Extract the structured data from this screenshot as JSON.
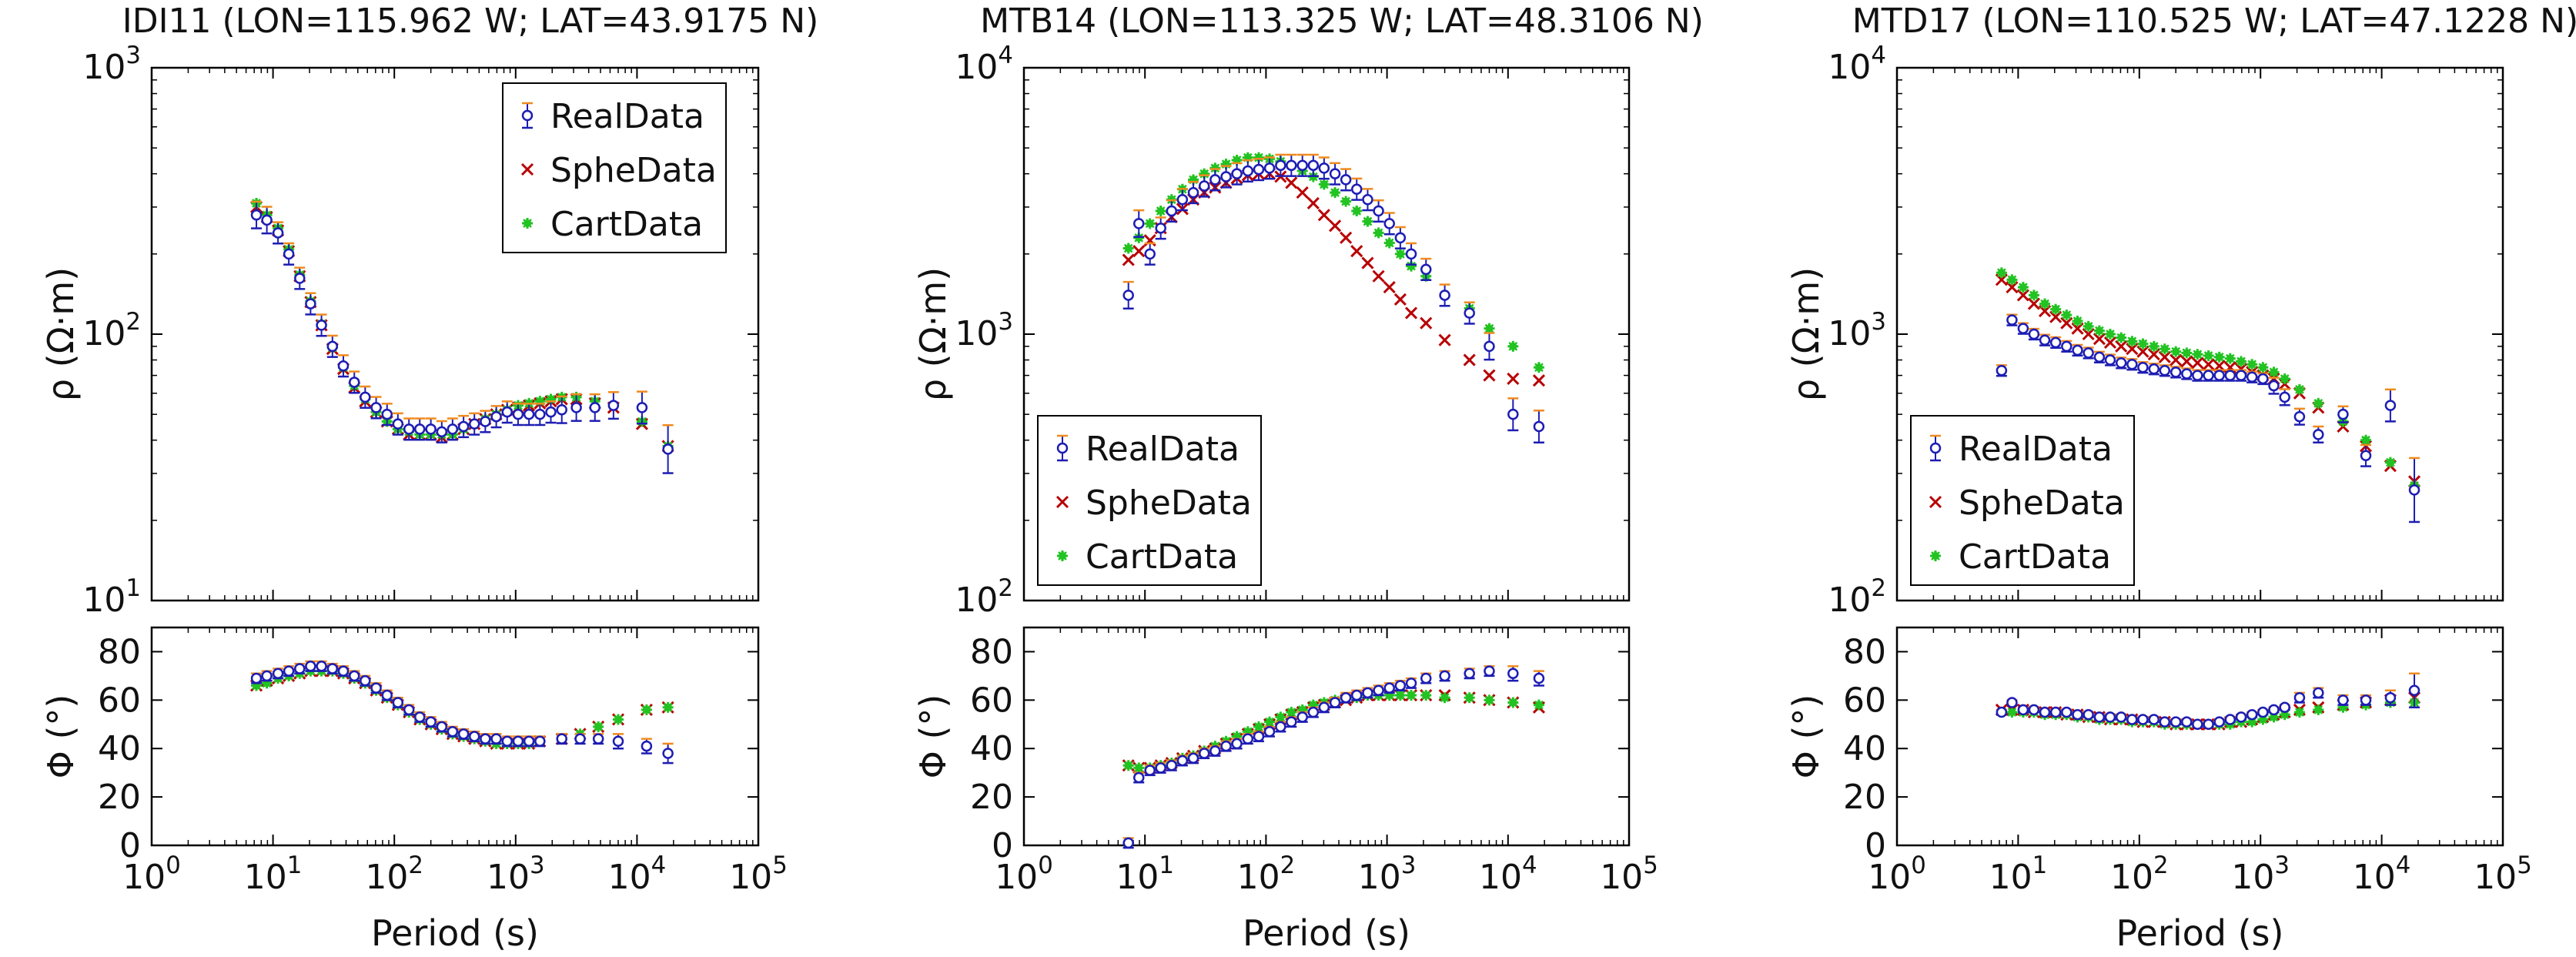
{
  "figure": {
    "colors": {
      "RealData": "#1d1db3",
      "SpheData": "#b80000",
      "CartData": "#22c322",
      "errorbar": "#f08a1e"
    }
  },
  "chart_data": [
    {
      "type": "scatter",
      "station": "IDI11",
      "title": "IDI11 (LON=115.962 W; LAT=43.9175 N)",
      "xlabel": "Period (s)",
      "xscale": "log",
      "xlim": [
        1,
        100000
      ],
      "xticks": [
        "10^0",
        "10^1",
        "10^2",
        "10^3",
        "10^4",
        "10^5"
      ],
      "legend_position": "top-right",
      "legend": [
        "RealData",
        "SpheData",
        "CartData"
      ],
      "rho": {
        "ylabel": "ρ (Ω·m)",
        "yscale": "log",
        "ylim": [
          10,
          1000
        ],
        "yticks": [
          "10^1",
          "10^2",
          "10^3"
        ],
        "period": [
          7.3,
          8.9,
          11.0,
          13.5,
          16.6,
          20.4,
          25.1,
          30.9,
          38.0,
          46.8,
          57.5,
          70.8,
          87.1,
          107,
          132,
          162,
          200,
          246,
          302,
          372,
          457,
          562,
          692,
          851,
          1047,
          1288,
          1585,
          1950,
          2400,
          3162,
          4500,
          6400,
          11000,
          18000
        ],
        "RealData": [
          280,
          268,
          240,
          200,
          162,
          130,
          108,
          90,
          76,
          66,
          58,
          53,
          50,
          46,
          44,
          44,
          44,
          43,
          44,
          45,
          46,
          47,
          49,
          51,
          50,
          50,
          50,
          51,
          52,
          53,
          53,
          54,
          53,
          37
        ],
        "RealData_err": [
          0.05,
          0.05,
          0.04,
          0.04,
          0.04,
          0.04,
          0.04,
          0.04,
          0.04,
          0.04,
          0.04,
          0.04,
          0.04,
          0.04,
          0.04,
          0.04,
          0.04,
          0.04,
          0.04,
          0.04,
          0.04,
          0.04,
          0.04,
          0.04,
          0.04,
          0.04,
          0.04,
          0.04,
          0.05,
          0.05,
          0.05,
          0.05,
          0.06,
          0.09
        ],
        "SpheData": [
          300,
          275,
          245,
          205,
          165,
          132,
          108,
          88,
          74,
          63,
          56,
          51,
          47,
          44,
          42,
          42,
          42,
          41,
          42,
          44,
          46,
          48,
          50,
          52,
          53,
          54,
          55,
          56,
          57,
          57,
          55,
          53,
          46,
          38
        ],
        "CartData": [
          310,
          280,
          250,
          208,
          167,
          133,
          109,
          89,
          75,
          64,
          57,
          51,
          47,
          44,
          43,
          42,
          42,
          42,
          42,
          44,
          46,
          48,
          50,
          52,
          54,
          55,
          56,
          57,
          58,
          58,
          56,
          54,
          47,
          38
        ]
      },
      "phase": {
        "ylabel": "Φ (°)",
        "ylim": [
          0,
          90
        ],
        "yticks": [
          0,
          20,
          40,
          60,
          80
        ],
        "period": [
          7.3,
          8.9,
          11.0,
          13.5,
          16.6,
          20.4,
          25.1,
          30.9,
          38.0,
          46.8,
          57.5,
          70.8,
          87.1,
          107,
          132,
          162,
          200,
          246,
          302,
          372,
          457,
          562,
          692,
          851,
          1047,
          1288,
          1585,
          2400,
          3400,
          4800,
          7000,
          12000,
          18000
        ],
        "RealData": [
          69,
          70,
          71,
          72,
          73,
          74,
          74,
          73,
          72,
          70,
          68,
          65,
          62,
          59,
          56,
          53,
          51,
          49,
          47,
          46,
          45,
          44,
          44,
          43,
          43,
          43,
          43,
          44,
          44,
          44,
          43,
          41,
          38
        ],
        "RealData_err": [
          2,
          2,
          2,
          2,
          2,
          2,
          2,
          2,
          2,
          2,
          2,
          2,
          2,
          2,
          2,
          2,
          2,
          2,
          2,
          2,
          2,
          2,
          2,
          2,
          2,
          2,
          2,
          2,
          2,
          2,
          3,
          3,
          4
        ],
        "SpheData": [
          66,
          68,
          69,
          70,
          71,
          72,
          72,
          72,
          71,
          69,
          67,
          64,
          61,
          58,
          55,
          52,
          50,
          48,
          46,
          45,
          44,
          43,
          42,
          42,
          42,
          42,
          43,
          44,
          46,
          49,
          52,
          56,
          57
        ],
        "CartData": [
          66,
          67,
          69,
          70,
          71,
          72,
          72,
          72,
          71,
          69,
          67,
          64,
          61,
          58,
          55,
          52,
          50,
          48,
          46,
          45,
          44,
          43,
          42,
          42,
          42,
          42,
          43,
          44,
          46,
          49,
          52,
          56,
          57
        ]
      }
    },
    {
      "type": "scatter",
      "station": "MTB14",
      "title": "MTB14 (LON=113.325 W; LAT=48.3106 N)",
      "xlabel": "Period (s)",
      "xscale": "log",
      "xlim": [
        1,
        100000
      ],
      "xticks": [
        "10^0",
        "10^1",
        "10^2",
        "10^3",
        "10^4",
        "10^5"
      ],
      "legend_position": "bottom-left",
      "legend": [
        "RealData",
        "SpheData",
        "CartData"
      ],
      "rho": {
        "ylabel": "ρ (Ω·m)",
        "yscale": "log",
        "ylim": [
          100,
          10000
        ],
        "yticks": [
          "10^2",
          "10^3",
          "10^4"
        ],
        "period": [
          7.3,
          8.9,
          11.0,
          13.5,
          16.6,
          20.4,
          25.1,
          30.9,
          38.0,
          46.8,
          57.5,
          70.8,
          87.1,
          107,
          132,
          162,
          200,
          246,
          302,
          372,
          457,
          562,
          692,
          851,
          1047,
          1288,
          1585,
          2100,
          3000,
          4800,
          7000,
          11000,
          18000
        ],
        "RealData": [
          1400,
          2600,
          2000,
          2500,
          2900,
          3200,
          3400,
          3600,
          3800,
          3900,
          4000,
          4100,
          4150,
          4200,
          4300,
          4300,
          4300,
          4300,
          4200,
          4000,
          3800,
          3500,
          3200,
          2900,
          2600,
          2300,
          2000,
          1750,
          1400,
          1200,
          900,
          500,
          450
        ],
        "RealData_err": [
          0.05,
          0.05,
          0.04,
          0.04,
          0.04,
          0.04,
          0.04,
          0.04,
          0.04,
          0.04,
          0.04,
          0.04,
          0.04,
          0.04,
          0.04,
          0.04,
          0.04,
          0.04,
          0.04,
          0.04,
          0.04,
          0.04,
          0.04,
          0.04,
          0.04,
          0.04,
          0.04,
          0.04,
          0.04,
          0.04,
          0.05,
          0.06,
          0.06
        ],
        "SpheData": [
          1900,
          2050,
          2250,
          2500,
          2750,
          2950,
          3200,
          3400,
          3550,
          3700,
          3850,
          3950,
          4000,
          4000,
          3900,
          3700,
          3400,
          3100,
          2800,
          2550,
          2300,
          2050,
          1850,
          1650,
          1500,
          1350,
          1200,
          1100,
          950,
          800,
          700,
          680,
          670
        ],
        "CartData": [
          2100,
          2300,
          2600,
          2900,
          3200,
          3500,
          3800,
          4000,
          4200,
          4350,
          4500,
          4600,
          4600,
          4550,
          4450,
          4300,
          4100,
          3900,
          3650,
          3400,
          3150,
          2900,
          2650,
          2400,
          2200,
          2000,
          1800,
          1650,
          1400,
          1250,
          1050,
          900,
          750
        ]
      },
      "phase": {
        "ylabel": "Φ (°)",
        "ylim": [
          0,
          90
        ],
        "yticks": [
          0,
          20,
          40,
          60,
          80
        ],
        "period": [
          7.3,
          8.9,
          11.0,
          13.5,
          16.6,
          20.4,
          25.1,
          30.9,
          38.0,
          46.8,
          57.5,
          70.8,
          87.1,
          107,
          132,
          162,
          200,
          246,
          302,
          372,
          457,
          562,
          692,
          851,
          1047,
          1288,
          1585,
          2100,
          3000,
          4800,
          7000,
          11000,
          18000
        ],
        "RealData": [
          1,
          28,
          31,
          32,
          33,
          35,
          36,
          38,
          39,
          41,
          42,
          44,
          45,
          47,
          49,
          51,
          53,
          55,
          57,
          59,
          61,
          62,
          63,
          64,
          65,
          66,
          67,
          69,
          70,
          71,
          72,
          71,
          69
        ],
        "RealData_err": [
          2,
          2,
          2,
          2,
          2,
          2,
          2,
          2,
          2,
          2,
          2,
          2,
          2,
          2,
          2,
          2,
          2,
          2,
          2,
          2,
          2,
          2,
          2,
          2,
          2,
          2,
          2,
          2,
          2,
          2,
          2,
          3,
          3
        ],
        "SpheData": [
          33,
          32,
          32,
          33,
          34,
          36,
          37,
          39,
          40,
          42,
          44,
          46,
          48,
          50,
          52,
          54,
          55,
          57,
          58,
          59,
          60,
          61,
          62,
          62,
          62,
          62,
          62,
          62,
          62,
          61,
          60,
          59,
          57
        ],
        "CartData": [
          33,
          32,
          32,
          33,
          34,
          36,
          37,
          39,
          41,
          43,
          45,
          47,
          49,
          51,
          53,
          55,
          56,
          58,
          59,
          60,
          61,
          61,
          62,
          62,
          62,
          62,
          62,
          62,
          61,
          61,
          60,
          59,
          58
        ]
      }
    },
    {
      "type": "scatter",
      "station": "MTD17",
      "title": "MTD17 (LON=110.525 W; LAT=47.1228 N)",
      "xlabel": "Period (s)",
      "xscale": "log",
      "xlim": [
        1,
        100000
      ],
      "xticks": [
        "10^0",
        "10^1",
        "10^2",
        "10^3",
        "10^4",
        "10^5"
      ],
      "legend_position": "bottom-left",
      "legend": [
        "RealData",
        "SpheData",
        "CartData"
      ],
      "rho": {
        "ylabel": "ρ (Ω·m)",
        "yscale": "log",
        "ylim": [
          100,
          10000
        ],
        "yticks": [
          "10^2",
          "10^3",
          "10^4"
        ],
        "period": [
          7.3,
          8.9,
          11.0,
          13.5,
          16.6,
          20.4,
          25.1,
          30.9,
          38.0,
          46.8,
          57.5,
          70.8,
          87.1,
          107,
          132,
          162,
          200,
          246,
          302,
          372,
          457,
          562,
          692,
          851,
          1047,
          1288,
          1585,
          2100,
          3000,
          4800,
          7400,
          11800,
          18600
        ],
        "RealData": [
          730,
          1130,
          1050,
          1000,
          950,
          930,
          900,
          870,
          850,
          820,
          800,
          780,
          770,
          750,
          740,
          730,
          720,
          710,
          700,
          700,
          700,
          700,
          700,
          690,
          680,
          640,
          580,
          490,
          420,
          500,
          350,
          540,
          260
        ],
        "RealData_err": [
          0.02,
          0.02,
          0.02,
          0.02,
          0.02,
          0.02,
          0.02,
          0.02,
          0.02,
          0.02,
          0.02,
          0.02,
          0.02,
          0.02,
          0.02,
          0.02,
          0.02,
          0.02,
          0.02,
          0.02,
          0.02,
          0.02,
          0.02,
          0.02,
          0.02,
          0.03,
          0.03,
          0.03,
          0.03,
          0.03,
          0.04,
          0.06,
          0.12
        ],
        "SpheData": [
          1600,
          1500,
          1400,
          1300,
          1220,
          1160,
          1100,
          1050,
          1000,
          960,
          930,
          900,
          880,
          860,
          840,
          820,
          800,
          790,
          780,
          770,
          760,
          750,
          740,
          720,
          700,
          680,
          650,
          600,
          530,
          450,
          380,
          320,
          280
        ],
        "CartData": [
          1700,
          1600,
          1500,
          1400,
          1300,
          1240,
          1180,
          1120,
          1070,
          1030,
          1000,
          970,
          940,
          920,
          900,
          880,
          860,
          850,
          840,
          830,
          820,
          810,
          790,
          770,
          750,
          720,
          680,
          620,
          550,
          470,
          400,
          330,
          270
        ]
      },
      "phase": {
        "ylabel": "Φ (°)",
        "ylim": [
          0,
          90
        ],
        "yticks": [
          0,
          20,
          40,
          60,
          80
        ],
        "period": [
          7.3,
          8.9,
          11.0,
          13.5,
          16.6,
          20.4,
          25.1,
          30.9,
          38.0,
          46.8,
          57.5,
          70.8,
          87.1,
          107,
          132,
          162,
          200,
          246,
          302,
          372,
          457,
          562,
          692,
          851,
          1047,
          1288,
          1585,
          2100,
          3000,
          4800,
          7400,
          11800,
          18600
        ],
        "RealData": [
          55,
          59,
          56,
          56,
          55,
          55,
          55,
          54,
          54,
          53,
          53,
          53,
          52,
          52,
          52,
          51,
          51,
          51,
          50,
          50,
          51,
          52,
          53,
          54,
          55,
          56,
          57,
          61,
          63,
          60,
          60,
          61,
          64
        ],
        "RealData_err": [
          1,
          1,
          1,
          1,
          1,
          1,
          1,
          1,
          1,
          1,
          1,
          1,
          1,
          1,
          1,
          1,
          1,
          1,
          1,
          1,
          1,
          1,
          1,
          1,
          1,
          1,
          1,
          2,
          2,
          2,
          2,
          3,
          7
        ],
        "SpheData": [
          56,
          56,
          56,
          55,
          55,
          55,
          54,
          54,
          53,
          53,
          52,
          52,
          52,
          51,
          51,
          51,
          50,
          50,
          50,
          50,
          50,
          51,
          51,
          52,
          53,
          54,
          55,
          56,
          57,
          58,
          59,
          60,
          61
        ],
        "CartData": [
          55,
          55,
          55,
          55,
          54,
          54,
          54,
          53,
          53,
          52,
          52,
          52,
          51,
          51,
          51,
          50,
          50,
          50,
          50,
          50,
          50,
          50,
          51,
          51,
          52,
          53,
          54,
          55,
          56,
          57,
          58,
          59,
          59
        ]
      }
    }
  ]
}
